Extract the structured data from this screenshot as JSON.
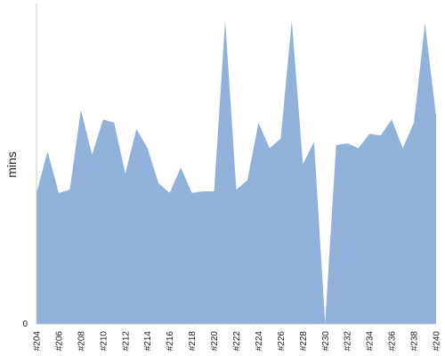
{
  "chart_data": {
    "type": "area",
    "title": "",
    "xlabel": "",
    "ylabel": "mins",
    "y_tick_labels": [
      "0"
    ],
    "ylim": [
      0,
      100
    ],
    "x": [
      "#204",
      "#205",
      "#206",
      "#207",
      "#208",
      "#209",
      "#210",
      "#211",
      "#212",
      "#213",
      "#214",
      "#215",
      "#216",
      "#217",
      "#218",
      "#219",
      "#220",
      "#221",
      "#222",
      "#223",
      "#224",
      "#225",
      "#226",
      "#227",
      "#228",
      "#229",
      "#230",
      "#231",
      "#232",
      "#233",
      "#234",
      "#235",
      "#236",
      "#237",
      "#238",
      "#239",
      "#240"
    ],
    "x_tick_labels": [
      "#204",
      "#206",
      "#208",
      "#210",
      "#212",
      "#214",
      "#216",
      "#218",
      "#220",
      "#222",
      "#224",
      "#226",
      "#228",
      "#230",
      "#232",
      "#234",
      "#236",
      "#238",
      "#240"
    ],
    "series": [
      {
        "color": "#8fb1da",
        "values": [
          41,
          54,
          41,
          42,
          67,
          53,
          64,
          63,
          47,
          61,
          55,
          44,
          41,
          49,
          41,
          41.5,
          41.5,
          95,
          42,
          45,
          63,
          55,
          58,
          95,
          50,
          57,
          0,
          56,
          56.5,
          55,
          59.5,
          59,
          64,
          55,
          63,
          94,
          65
        ],
        "failed_runs": [
          "#230"
        ]
      }
    ],
    "failed_color": "#bdbdbd",
    "axis_color": "#c8c8c8"
  }
}
